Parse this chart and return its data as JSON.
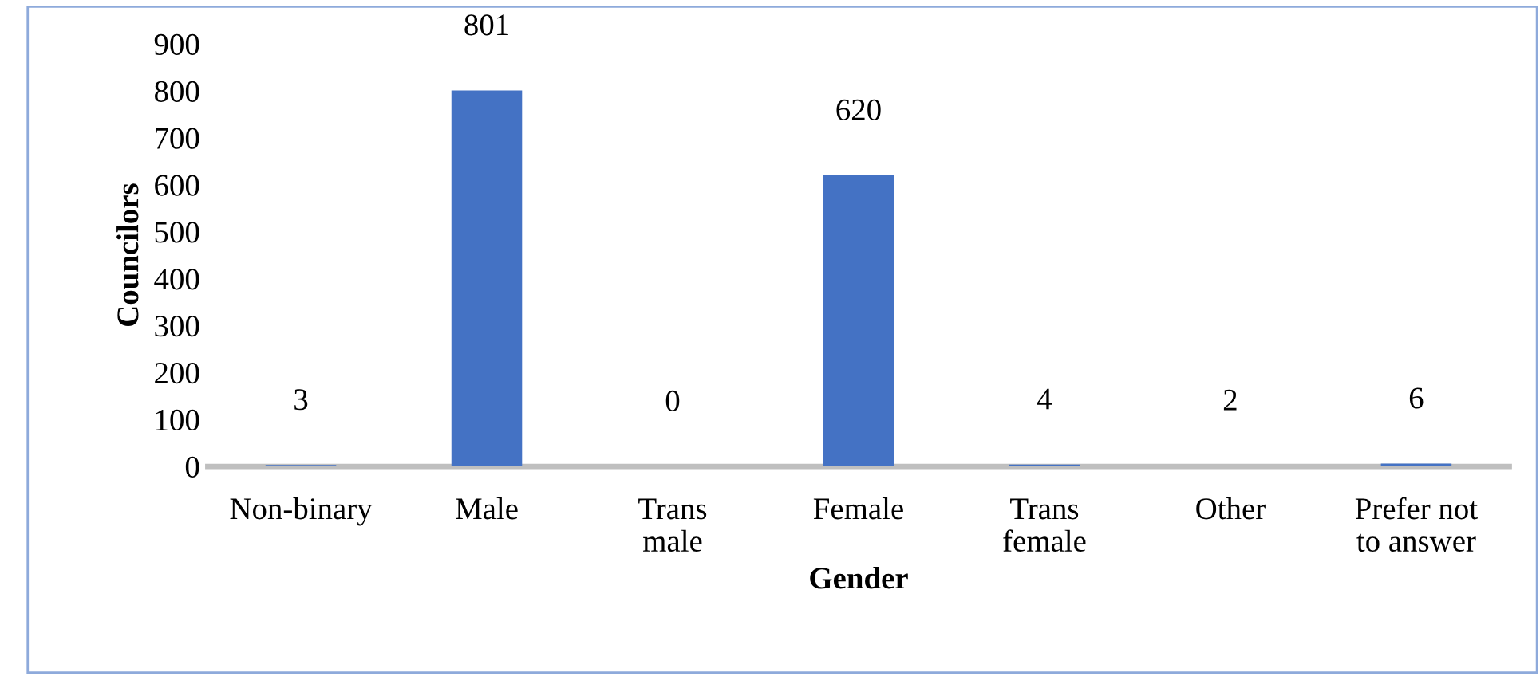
{
  "chart_data": {
    "type": "bar",
    "xlabel": "Gender",
    "ylabel": "Councilors",
    "categories": [
      "Non-binary",
      "Male",
      "Trans\nmale",
      "Female",
      "Trans\nfemale",
      "Other",
      "Prefer not\nto answer"
    ],
    "values": [
      3,
      801,
      0,
      620,
      4,
      2,
      6
    ],
    "color": "#4472c4",
    "ylim": [
      0,
      900
    ],
    "yticks": [
      0,
      100,
      200,
      300,
      400,
      500,
      600,
      700,
      800,
      900
    ],
    "data_labels": true,
    "grid": false
  }
}
